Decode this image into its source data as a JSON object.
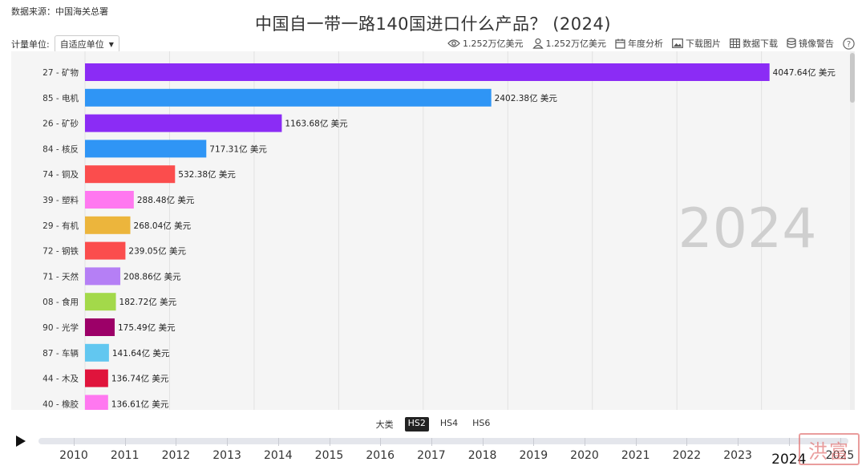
{
  "header": {
    "source": "数据来源：中国海关总署",
    "title": "中国自一带一路140国进口什么产品？  (2024)"
  },
  "unit": {
    "label": "计量单位:",
    "value": "自适应单位"
  },
  "toolbar": {
    "views_label": "1.252万亿美元",
    "users_label": "1.252万亿美元",
    "annual_label": "年度分析",
    "download_image_label": "下载图片",
    "download_data_label": "数据下载",
    "mirror_label": "镜像警告",
    "help_label": "?"
  },
  "chart_data": {
    "type": "bar",
    "orientation": "horizontal",
    "year_watermark": "2024",
    "value_suffix": "亿 美元",
    "xlim": [
      0,
      4400
    ],
    "grid": true,
    "categories": [
      "27 - 矿物",
      "85 - 电机",
      "26 - 矿砂",
      "84 - 核反",
      "74 - 铜及",
      "39 - 塑料",
      "29 - 有机",
      "72 - 钢铁",
      "71 - 天然",
      "08 - 食用",
      "90 - 光学",
      "87 - 车辆",
      "44 - 木及",
      "40 - 橡胶"
    ],
    "values": [
      4047.64,
      2402.38,
      1163.68,
      717.31,
      532.38,
      288.48,
      268.04,
      239.05,
      208.86,
      182.72,
      175.49,
      141.64,
      136.74,
      136.61
    ],
    "value_labels": [
      "4047.64亿 美元",
      "2402.38亿 美元",
      "1163.68亿 美元",
      "717.31亿 美元",
      "532.38亿 美元",
      "288.48亿 美元",
      "268.04亿 美元",
      "239.05亿 美元",
      "208.86亿 美元",
      "182.72亿 美元",
      "175.49亿 美元",
      "141.64亿 美元",
      "136.74亿 美元",
      "136.61亿 美元"
    ],
    "colors": [
      "#8b2cf5",
      "#2f95f5",
      "#8b2cf5",
      "#2f95f5",
      "#fb4d4d",
      "#ff78f0",
      "#ecb53c",
      "#fb4d4d",
      "#b57ff5",
      "#a3d94a",
      "#9c0068",
      "#62c7f0",
      "#e0143c",
      "#ff78f0"
    ]
  },
  "hs_levels": {
    "items": [
      "大类",
      "HS2",
      "HS4",
      "HS6"
    ],
    "active": "HS2"
  },
  "timeline": {
    "years": [
      "2010",
      "2011",
      "2012",
      "2013",
      "2014",
      "2015",
      "2016",
      "2017",
      "2018",
      "2019",
      "2020",
      "2021",
      "2022",
      "2023",
      "2024",
      "2025"
    ],
    "current": "2024"
  },
  "watermark": {
    "stamp": "洪富"
  }
}
